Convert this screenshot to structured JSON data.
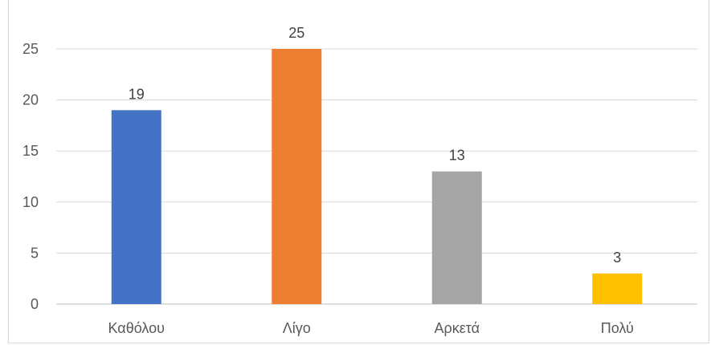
{
  "chart_data": {
    "type": "bar",
    "categories": [
      "Καθόλου",
      "Λίγο",
      "Αρκετά",
      "Πολύ"
    ],
    "values": [
      19,
      25,
      13,
      3
    ],
    "colors": [
      "#4472c4",
      "#ed7d31",
      "#a5a5a5",
      "#ffc000"
    ],
    "title": "",
    "xlabel": "",
    "ylabel": "",
    "ylim": [
      0,
      25
    ],
    "yticks": [
      0,
      5,
      10,
      15,
      20,
      25
    ],
    "grid": true,
    "data_labels": true,
    "legend": "none"
  }
}
